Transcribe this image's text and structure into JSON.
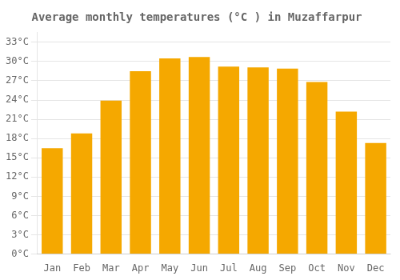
{
  "chart_data": {
    "type": "bar",
    "title": "Average monthly temperatures (°C ) in Muzaffarpur",
    "categories": [
      "Jan",
      "Feb",
      "Mar",
      "Apr",
      "May",
      "Jun",
      "Jul",
      "Aug",
      "Sep",
      "Oct",
      "Nov",
      "Dec"
    ],
    "values": [
      16.5,
      18.8,
      23.9,
      28.5,
      30.5,
      30.7,
      29.2,
      29.1,
      28.9,
      26.8,
      22.2,
      17.3
    ],
    "color": "#F5A800",
    "ylim": [
      0,
      34.5
    ],
    "yticks": [
      {
        "value": 0,
        "label": "0°C"
      },
      {
        "value": 3,
        "label": "3°C"
      },
      {
        "value": 6,
        "label": "6°C"
      },
      {
        "value": 9,
        "label": "9°C"
      },
      {
        "value": 12,
        "label": "12°C"
      },
      {
        "value": 15,
        "label": "15°C"
      },
      {
        "value": 18,
        "label": "18°C"
      },
      {
        "value": 21,
        "label": "21°C"
      },
      {
        "value": 24,
        "label": "24°C"
      },
      {
        "value": 27,
        "label": "27°C"
      },
      {
        "value": 30,
        "label": "30°C"
      },
      {
        "value": 33,
        "label": "33°C"
      }
    ],
    "grid": true
  }
}
